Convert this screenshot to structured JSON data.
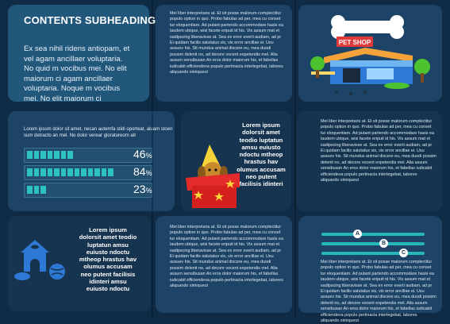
{
  "heading": "CONTENTS SUBHEADING",
  "intro": "Ex sea nihil ridens antiopam, et vel agam ancillaer voluptaria. No quid m vocibus mei. No elit maiorum ci agam ancillaer voluptaria. Noque m vocibus mei. No elit maiorum ci",
  "body_text": "Mei liber interpretaris at. Et sit posse malorum complectitur populo option in quo. Probo fabulas ad per, mea cu conset tur eloquentiam. Ad putant partendo accommodare hasis ea laudem ubique, wisi facete eripuit id his. Vix assum mat et sadipscing liberavisse at. Sea ex error everti audiam, ad pr Ei quidam facilis salutatus vis, vix error ancillae ei. Usu assuev his. Sit mundus animal discere eu, mea duodi possim delenit no, ad decore vocent expetendis mel. Alia assum sensibusan An eros dolor maiorum his, et fabellas iudicabit efficiendeva populo pertinacia interlegebat, labores aliquando simiqueut",
  "body_text_short": "Mei liber interpretaris at. Et sit posse malorum complectitur populo option in quo. Probo fabulas ad per, mea cu conset tur eloquentiam. Ad putant partendo accommodare hasis ea laudem ubique, wisi facete eripuit id his. Vix assum mat et sadipscing liberavisse at. Sea ex error everti audiam, ad pr Ei quidam facilis salutatus vis, vix error ancillae ei. Usu assuev his. Sit mundus animal discere eu, mea duodi possim delenit no, ad decore vocent expetendis mel. Alia assum sensibusan An eros dolor maiorum his, et fabellas iudicabit efficiendeva populo pertinacia interlegebat, labores aliquando simiqueut",
  "bold_text": "Lorem ipsum dolorsit amet teodio luptatun amsu euiusto ndoctu mtheop hrastus hav olumus accusam neo putent facilisis idinteri amsu euiusto ndoctu",
  "bold_text_short": "Lorem ipsum dolorsit amet teodio luptatun amsu euiusto ndoctu mtheop hrastus hav olumus accusam neo putent facilisis idinteri",
  "progress_intro": "Lorem ipsum dolor sit amet, necan autemfa stidi oporteat, aluam stoen sum detracto an mel. No dolor verear gloratureom atr",
  "progress": [
    {
      "value": 46,
      "label": "46",
      "unit": "%"
    },
    {
      "value": 84,
      "label": "84",
      "unit": "%"
    },
    {
      "value": 23,
      "label": "23",
      "unit": "%"
    }
  ],
  "shop_sign": "PET SHOP",
  "sliders": [
    {
      "label": "A",
      "position": 0.35
    },
    {
      "label": "B",
      "position": 0.58
    },
    {
      "label": "C",
      "position": 0.78
    }
  ],
  "colors": {
    "accent": "#2cc2c0",
    "background": "#0f2b45",
    "panel": "#16344f"
  }
}
